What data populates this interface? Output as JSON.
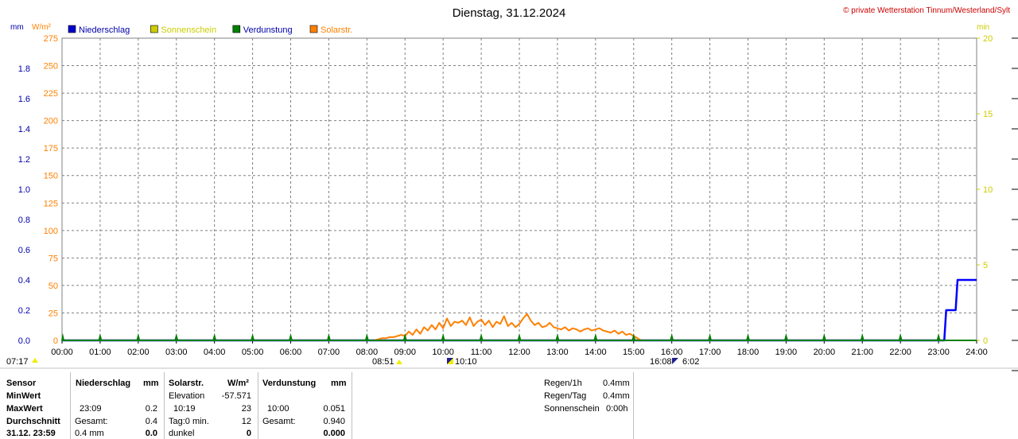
{
  "title": "Dienstag, 31.12.2024",
  "copyright": "© private Wetterstation Tinnum/Westerland/Sylt",
  "legend": [
    {
      "label": "Niederschlag",
      "color": "#0000cc",
      "text_color": "#0000aa"
    },
    {
      "label": "Sonnenschein",
      "color": "#cccc00",
      "text_color": "#cccc00"
    },
    {
      "label": "Verdunstung",
      "color": "#008000",
      "text_color": "#0000aa"
    },
    {
      "label": "Solarstr.",
      "color": "#ff8000",
      "text_color": "#ff8000"
    }
  ],
  "chart_data": {
    "type": "line",
    "x_unit_labels": [
      "00:00",
      "01:00",
      "02:00",
      "03:00",
      "04:00",
      "05:00",
      "06:00",
      "07:00",
      "08:00",
      "09:00",
      "10:00",
      "11:00",
      "12:00",
      "13:00",
      "14:00",
      "15:00",
      "16:00",
      "17:00",
      "18:00",
      "19:00",
      "20:00",
      "21:00",
      "22:00",
      "23:00",
      "24:00"
    ],
    "xlim": [
      0,
      24
    ],
    "axes": {
      "mm": {
        "label": "mm",
        "ticks": [
          "0.0",
          "0.2",
          "0.4",
          "0.6",
          "0.8",
          "1.0",
          "1.2",
          "1.4",
          "1.6",
          "1.8"
        ],
        "range": [
          0,
          2.0
        ],
        "color": "#0000aa"
      },
      "wm2": {
        "label": "W/m²",
        "ticks": [
          "0",
          "25",
          "50",
          "75",
          "100",
          "125",
          "150",
          "175",
          "200",
          "225",
          "250",
          "275"
        ],
        "range": [
          0,
          275
        ],
        "color": "#ff8000"
      },
      "min": {
        "label": "min",
        "ticks": [
          "0",
          "5",
          "10",
          "15",
          "20"
        ],
        "range": [
          0,
          20
        ],
        "color": "#cccc00"
      }
    },
    "series": [
      {
        "name": "Niederschlag",
        "axis": "mm",
        "color": "#0000ff",
        "x": [
          0,
          23.15,
          23.2,
          23.45,
          23.5,
          24
        ],
        "y": [
          0,
          0,
          0.2,
          0.2,
          0.4,
          0.4
        ]
      },
      {
        "name": "Solarstr.",
        "axis": "wm2",
        "color": "#ff8000",
        "x": [
          8.2,
          8.3,
          8.4,
          8.5,
          8.6,
          8.7,
          8.8,
          8.9,
          9.0,
          9.1,
          9.2,
          9.3,
          9.4,
          9.5,
          9.6,
          9.7,
          9.8,
          9.9,
          10.0,
          10.1,
          10.2,
          10.3,
          10.4,
          10.5,
          10.6,
          10.7,
          10.8,
          10.9,
          11.0,
          11.1,
          11.2,
          11.3,
          11.4,
          11.5,
          11.6,
          11.7,
          11.8,
          11.9,
          12.0,
          12.1,
          12.2,
          12.3,
          12.4,
          12.5,
          12.6,
          12.7,
          12.8,
          12.9,
          13.0,
          13.1,
          13.2,
          13.3,
          13.4,
          13.5,
          13.6,
          13.7,
          13.8,
          13.9,
          14.0,
          14.1,
          14.2,
          14.3,
          14.4,
          14.5,
          14.6,
          14.7,
          14.8,
          14.9,
          15.0,
          15.1,
          15.2
        ],
        "y": [
          0,
          1,
          2,
          2,
          3,
          3,
          4,
          5,
          4,
          8,
          5,
          10,
          6,
          12,
          9,
          14,
          10,
          16,
          11,
          20,
          13,
          17,
          16,
          18,
          14,
          21,
          13,
          17,
          19,
          14,
          18,
          12,
          17,
          15,
          22,
          13,
          16,
          12,
          15,
          20,
          24,
          18,
          14,
          16,
          12,
          13,
          16,
          12,
          11,
          10,
          12,
          9,
          11,
          10,
          8,
          10,
          11,
          9,
          10,
          11,
          9,
          8,
          7,
          9,
          6,
          8,
          5,
          6,
          4,
          2,
          0
        ]
      },
      {
        "name": "Verdunstung",
        "axis": "mm",
        "color": "#008000",
        "x": [
          0,
          24
        ],
        "y": [
          0,
          0
        ]
      }
    ],
    "grid": true
  },
  "markers": {
    "left_time": "07:17",
    "sunrise": "08:51",
    "sun_max": "10:10",
    "sunset": "16:08",
    "duration": "6:02"
  },
  "panel": {
    "sensor_label": "Sensor",
    "min_label": "MinWert",
    "max_label": "MaxWert",
    "avg_label": "Durchschnitt",
    "date_label": "31.12. 23:59",
    "rain": {
      "header": "Niederschlag",
      "unit": "mm",
      "max_time": "23:09",
      "max_value": "0.2",
      "total_label": "Gesamt:",
      "total_value": "0.4",
      "current": "0.4 mm",
      "current_value": "0.0"
    },
    "solar": {
      "header": "Solarstr.",
      "unit": "W/m²",
      "elev_label": "Elevation",
      "elev_value": "-57.571",
      "max_time": "10:19",
      "max_value": "23",
      "tag_label": "Tag:0 min.",
      "tag_value": "12",
      "state": "dunkel",
      "state_value": "0"
    },
    "evap": {
      "header": "Verdunstung",
      "unit": "mm",
      "max_time": "10:00",
      "max_value": "0.051",
      "total_label": "Gesamt:",
      "total_value": "0.940",
      "current_value": "0.000"
    },
    "summary": [
      {
        "label": "Regen/1h",
        "value": "0.4mm"
      },
      {
        "label": "Regen/Tag",
        "value": "0.4mm"
      },
      {
        "label": "Sonnenschein",
        "value": "0:00h"
      }
    ]
  }
}
